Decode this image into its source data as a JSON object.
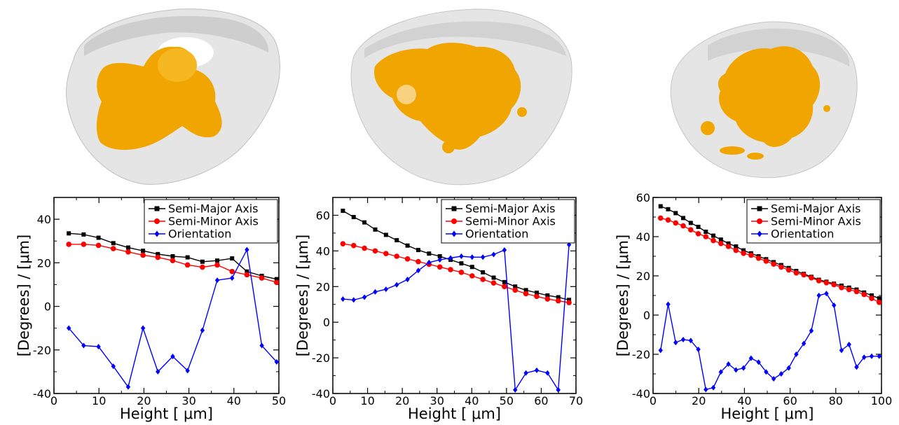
{
  "colors": {
    "semi_major": "#000000",
    "semi_minor": "#ff0000",
    "orientation": "#0000ff",
    "cell_body": "#e0e0e0",
    "nucleus": "#f0a500"
  },
  "chart_data": [
    {
      "type": "line",
      "xlabel": "Height [ μm]",
      "ylabel": "[Degrees] / [μm]",
      "xlim": [
        0,
        50
      ],
      "ylim": [
        -40,
        50
      ],
      "xticks": [
        0,
        10,
        20,
        30,
        40,
        50
      ],
      "yticks": [
        -40,
        -20,
        0,
        20,
        40
      ],
      "grid": false,
      "legend_position": "top-right",
      "series": [
        {
          "name": "Semi-Major Axis",
          "marker": "square",
          "x": [
            3.3,
            6.6,
            9.9,
            13.2,
            16.5,
            19.8,
            23.1,
            26.4,
            29.7,
            33.0,
            36.3,
            39.6,
            42.9,
            46.2,
            49.5
          ],
          "y": [
            33.5,
            33,
            31.5,
            29,
            27,
            25.5,
            24,
            23,
            22.5,
            20.5,
            21,
            22,
            16,
            14,
            12.5
          ]
        },
        {
          "name": "Semi-Minor Axis",
          "marker": "circle",
          "x": [
            3.3,
            6.6,
            9.9,
            13.2,
            16.5,
            19.8,
            23.1,
            26.4,
            29.7,
            33.0,
            36.3,
            39.6,
            42.9,
            46.2,
            49.5
          ],
          "y": [
            28.5,
            28.5,
            28,
            26.5,
            25,
            23.5,
            22.5,
            21,
            19,
            18,
            19,
            16,
            14.5,
            13,
            11
          ]
        },
        {
          "name": "Orientation",
          "marker": "diamond",
          "x": [
            3.3,
            6.6,
            9.9,
            13.2,
            16.5,
            19.8,
            23.1,
            26.4,
            29.7,
            33.0,
            36.3,
            39.6,
            42.9,
            46.2,
            49.5
          ],
          "y": [
            -10,
            -18,
            -18.5,
            -27.5,
            -37,
            -10,
            -30,
            -23,
            -29.5,
            -11,
            12,
            13,
            26,
            -18,
            -25.5
          ]
        }
      ]
    },
    {
      "type": "line",
      "xlabel": "Height [ μm]",
      "ylabel": "[Degrees] / [μm]",
      "xlim": [
        0,
        70
      ],
      "ylim": [
        -40,
        70
      ],
      "xticks": [
        0,
        10,
        20,
        30,
        40,
        50,
        60,
        70
      ],
      "yticks": [
        -40,
        -20,
        0,
        20,
        40,
        60
      ],
      "grid": false,
      "legend_position": "top-right",
      "series": [
        {
          "name": "Semi-Major Axis",
          "marker": "square",
          "x": [
            2.9,
            6.0,
            9.1,
            12.2,
            15.3,
            18.4,
            21.5,
            24.6,
            27.7,
            30.8,
            33.9,
            37.0,
            40.1,
            43.2,
            46.3,
            49.4,
            52.5,
            55.6,
            58.7,
            61.8,
            64.9,
            68.0
          ],
          "y": [
            62.5,
            59,
            56,
            52,
            49,
            46,
            43,
            40.5,
            38.5,
            37,
            35,
            33,
            31,
            28,
            25,
            22.5,
            20,
            18,
            16.5,
            15,
            14,
            12.5
          ]
        },
        {
          "name": "Semi-Minor Axis",
          "marker": "circle",
          "x": [
            2.9,
            6.0,
            9.1,
            12.2,
            15.3,
            18.4,
            21.5,
            24.6,
            27.7,
            30.8,
            33.9,
            37.0,
            40.1,
            43.2,
            46.3,
            49.4,
            52.5,
            55.6,
            58.7,
            61.8,
            64.9,
            68.0
          ],
          "y": [
            44,
            43,
            41.5,
            40,
            38.5,
            37,
            35.5,
            34,
            32.5,
            31,
            29.5,
            28,
            26,
            24,
            22,
            20,
            18,
            16,
            14.5,
            13,
            12,
            11
          ]
        },
        {
          "name": "Orientation",
          "marker": "diamond",
          "x": [
            2.9,
            6.0,
            9.1,
            12.2,
            15.3,
            18.4,
            21.5,
            24.6,
            27.7,
            30.8,
            33.9,
            37.0,
            40.1,
            43.2,
            46.3,
            49.4,
            52.5,
            55.6,
            58.7,
            61.8,
            64.9,
            68.0
          ],
          "y": [
            13,
            12.5,
            14,
            17,
            18.5,
            21,
            24,
            29,
            33.5,
            35,
            36,
            37,
            36.5,
            36.5,
            38,
            40.5,
            -38,
            -28.5,
            -27,
            -28.5,
            -38,
            43.5
          ]
        }
      ]
    },
    {
      "type": "line",
      "xlabel": "Height [ μm]",
      "ylabel": "[Degrees] / [μm]",
      "xlim": [
        0,
        100
      ],
      "ylim": [
        -40,
        60
      ],
      "xticks": [
        0,
        20,
        40,
        60,
        80,
        100
      ],
      "yticks": [
        -40,
        -20,
        0,
        20,
        40,
        60
      ],
      "grid": false,
      "legend_position": "top-right",
      "series": [
        {
          "name": "Semi-Major Axis",
          "marker": "square",
          "x": [
            3.3,
            6.6,
            9.9,
            13.2,
            16.5,
            19.8,
            23.1,
            26.4,
            29.7,
            33.0,
            36.3,
            39.6,
            42.9,
            46.2,
            49.5,
            52.8,
            56.1,
            59.4,
            62.7,
            66.0,
            69.3,
            72.6,
            75.9,
            79.2,
            82.5,
            85.8,
            89.1,
            92.4,
            95.7,
            99.0
          ],
          "y": [
            55.5,
            54,
            52,
            49.5,
            47,
            45,
            42.5,
            40.5,
            38.5,
            36.5,
            35,
            33,
            31.5,
            30,
            28.5,
            27,
            25.5,
            24,
            22.5,
            21,
            19.5,
            18,
            17,
            16,
            15,
            14,
            13,
            11.5,
            10,
            8.5
          ]
        },
        {
          "name": "Semi-Minor Axis",
          "marker": "circle",
          "x": [
            3.3,
            6.6,
            9.9,
            13.2,
            16.5,
            19.8,
            23.1,
            26.4,
            29.7,
            33.0,
            36.3,
            39.6,
            42.9,
            46.2,
            49.5,
            52.8,
            56.1,
            59.4,
            62.7,
            66.0,
            69.3,
            72.6,
            75.9,
            79.2,
            82.5,
            85.8,
            89.1,
            92.4,
            95.7,
            99.0
          ],
          "y": [
            49.5,
            48.5,
            47,
            45.5,
            43.5,
            41.5,
            40,
            38,
            36.5,
            35,
            33,
            31.5,
            30.5,
            29,
            27.5,
            26,
            24.5,
            23,
            21.5,
            20.5,
            19,
            17.5,
            16.5,
            15.5,
            14,
            13,
            12,
            10.5,
            8.5,
            6.5
          ]
        },
        {
          "name": "Orientation",
          "marker": "diamond",
          "x": [
            3.3,
            6.6,
            9.9,
            13.2,
            16.5,
            19.8,
            23.1,
            26.4,
            29.7,
            33.0,
            36.3,
            39.6,
            42.9,
            46.2,
            49.5,
            52.8,
            56.1,
            59.4,
            62.7,
            66.0,
            69.3,
            72.6,
            75.9,
            79.2,
            82.5,
            85.8,
            89.1,
            92.4,
            95.7,
            99.0
          ],
          "y": [
            -18,
            5.5,
            -14,
            -12.5,
            -13,
            -17.5,
            -38,
            -37,
            -29,
            -25,
            -28,
            -27,
            -22,
            -24,
            -29,
            -32.5,
            -30,
            -27,
            -20,
            -14.5,
            -8,
            10,
            11,
            5,
            -18,
            -15,
            -26.5,
            -21.5,
            -21,
            -21
          ]
        }
      ]
    }
  ]
}
